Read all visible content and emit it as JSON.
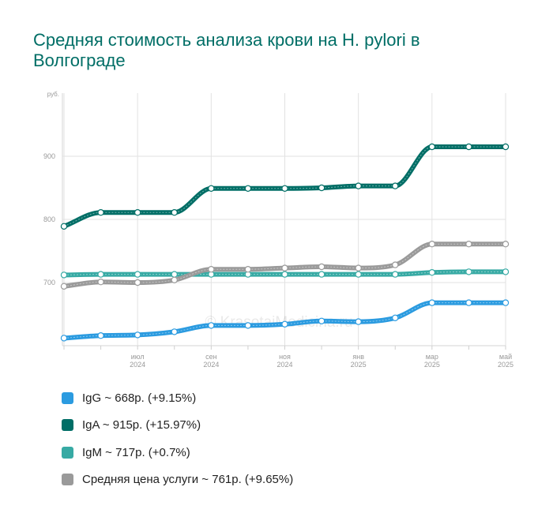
{
  "page": {
    "title": "Средняя стоимость анализа крови на H. pylori в Волгограде"
  },
  "chart_data": {
    "type": "line",
    "title": "Средняя стоимость анализа крови на H. pylori в Волгограде",
    "ylabel": "руб.",
    "xlabel": "",
    "ylim": [
      600,
      1000
    ],
    "yticks": [
      700,
      800,
      900
    ],
    "x": [
      "2024-05",
      "2024-06",
      "2024-07",
      "2024-08",
      "2024-09",
      "2024-10",
      "2024-11",
      "2024-12",
      "2025-01",
      "2025-02",
      "2025-03",
      "2025-04",
      "2025-05"
    ],
    "xtick_labels": [
      {
        "x": "2024-07",
        "month": "июл",
        "year": "2024"
      },
      {
        "x": "2024-09",
        "month": "сен",
        "year": "2024"
      },
      {
        "x": "2024-11",
        "month": "ноя",
        "year": "2024"
      },
      {
        "x": "2025-01",
        "month": "янв",
        "year": "2025"
      },
      {
        "x": "2025-03",
        "month": "мар",
        "year": "2025"
      },
      {
        "x": "2025-05",
        "month": "май",
        "year": "2025"
      }
    ],
    "grid": true,
    "watermark": "© KrasotaiMedicina.ru",
    "series": [
      {
        "name": "IgG",
        "color": "#2b9be0",
        "legend": "IgG ~ 668р. (+9.15%)",
        "values": [
          612,
          616,
          617,
          622,
          632,
          632,
          634,
          639,
          638,
          644,
          668,
          668,
          668
        ]
      },
      {
        "name": "IgM",
        "color": "#37aaa4",
        "legend": "IgM ~ 717р. (+0.7%)",
        "values": [
          712,
          713,
          713,
          713,
          713,
          713,
          713,
          713,
          713,
          713,
          716,
          717,
          717
        ]
      },
      {
        "name": "Средняя цена услуги",
        "color": "#9a9a9a",
        "legend": "Средняя цена услуги ~ 761р. (+9.65%)",
        "values": [
          694,
          701,
          700,
          704,
          721,
          721,
          723,
          725,
          723,
          728,
          761,
          761,
          761
        ]
      },
      {
        "name": "IgA",
        "color": "#006e66",
        "legend": "IgA ~ 915р. (+15.97%)",
        "values": [
          789,
          811,
          811,
          811,
          849,
          849,
          849,
          850,
          853,
          853,
          915,
          915,
          915
        ]
      }
    ],
    "legend_order": [
      "IgG",
      "IgA",
      "IgM",
      "Средняя цена услуги"
    ]
  }
}
